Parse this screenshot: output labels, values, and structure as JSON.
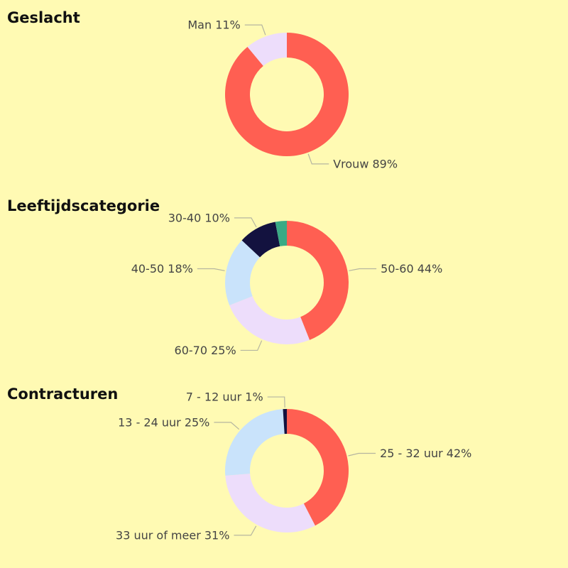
{
  "chart_data": [
    {
      "type": "pie",
      "donut": true,
      "title": "Geslacht",
      "slices": [
        {
          "label": "Vrouw",
          "value": 89,
          "display": "Vrouw 89%",
          "color": "#FF5F52",
          "label_side": "right"
        },
        {
          "label": "Man",
          "value": 11,
          "display": "Man 11%",
          "color": "#EDDDFB",
          "label_side": "left"
        }
      ]
    },
    {
      "type": "pie",
      "donut": true,
      "title": "Leeftijdscategorie",
      "slices": [
        {
          "label": "50-60",
          "value": 44,
          "display": "50-60 44%",
          "color": "#FF5F52",
          "label_side": "right"
        },
        {
          "label": "60-70",
          "value": 25,
          "display": "60-70 25%",
          "color": "#EDDDFB",
          "label_side": "left"
        },
        {
          "label": "40-50",
          "value": 18,
          "display": "40-50 18%",
          "color": "#C9E3FB",
          "label_side": "left"
        },
        {
          "label": "30-40",
          "value": 10,
          "display": "30-40 10%",
          "color": "#13123F",
          "label_side": "left"
        },
        {
          "label": "",
          "value": 3,
          "display": "",
          "color": "#3AAA85",
          "label_side": "none"
        }
      ]
    },
    {
      "type": "pie",
      "donut": true,
      "title": "Contracturen",
      "slices": [
        {
          "label": "25 - 32 uur",
          "value": 42,
          "display": "25 - 32 uur 42%",
          "color": "#FF5F52",
          "label_side": "right"
        },
        {
          "label": "33 uur of meer",
          "value": 31,
          "display": "33 uur of meer 31%",
          "color": "#EDDDFB",
          "label_side": "left"
        },
        {
          "label": "13 - 24 uur",
          "value": 25,
          "display": "13 - 24 uur 25%",
          "color": "#C9E3FB",
          "label_side": "left"
        },
        {
          "label": "7 - 12 uur",
          "value": 1,
          "display": "7 - 12 uur 1%",
          "color": "#13123F",
          "label_side": "left"
        }
      ]
    }
  ]
}
